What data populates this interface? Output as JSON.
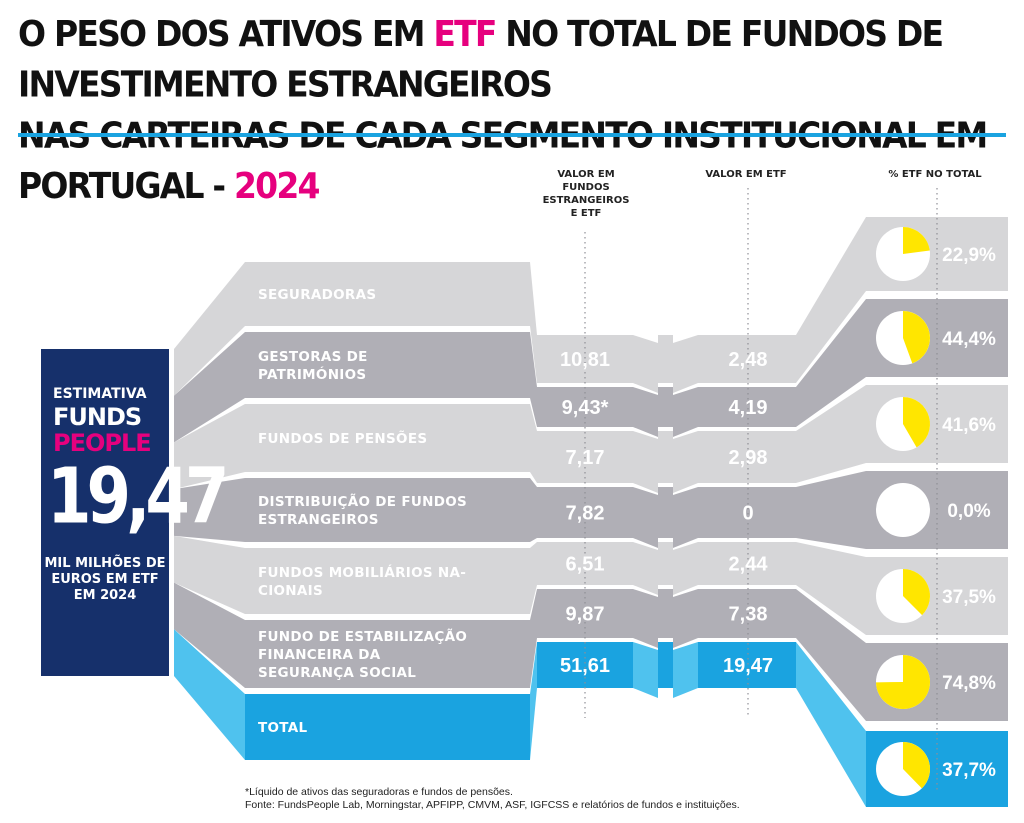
{
  "title": {
    "line1_a": "O PESO DOS ATIVOS EM ",
    "line1_hl": "ETF",
    "line1_b": " NO TOTAL DE FUNDOS DE INVESTIMENTO ESTRANGEIROS",
    "line2_a": "NAS CARTEIRAS DE CADA SEGMENTO INSTITUCIONAL EM PORTUGAL - ",
    "line2_hl": "2024"
  },
  "headers": {
    "col1": "VALOR EM FUNDOS ESTRANGEIROS E ETF",
    "col2": "VALOR EM ETF",
    "col3": "% ETF NO TOTAL"
  },
  "badge": {
    "estimativa": "ESTIMATIVA",
    "brand1": "FUNDS",
    "brand2": "PEOPLE",
    "value": "19,47",
    "unit": "MIL MILHÕES DE EUROS EM ETF EM 2024"
  },
  "chart_data": {
    "type": "table",
    "columns": [
      "VALOR EM FUNDOS ESTRANGEIROS E ETF",
      "VALOR EM ETF",
      "% ETF NO TOTAL"
    ],
    "rows": [
      {
        "segment": "SEGURADORAS",
        "funds_display": "10,81",
        "etf_display": "2,48",
        "pct_display": "22,9%",
        "pct": 22.9
      },
      {
        "segment": "GESTORAS DE PATRIMÓNIOS",
        "funds_display": "9,43*",
        "etf_display": "4,19",
        "pct_display": "44,4%",
        "pct": 44.4
      },
      {
        "segment": "FUNDOS DE PENSÕES",
        "funds_display": "7,17",
        "etf_display": "2,98",
        "pct_display": "41,6%",
        "pct": 41.6
      },
      {
        "segment": "DISTRIBUIÇÃO DE FUNDOS ESTRANGEIROS",
        "funds_display": "7,82",
        "etf_display": "0",
        "pct_display": "0,0%",
        "pct": 0.0
      },
      {
        "segment": "FUNDOS MOBILIÁRIOS NACIONAIS",
        "funds_display": "6,51",
        "etf_display": "2,44",
        "pct_display": "37,5%",
        "pct": 37.5
      },
      {
        "segment": "FUNDO DE ESTABILIZAÇÃO FINANCEIRA DA SEGURANÇA SOCIAL",
        "funds_display": "9,87",
        "etf_display": "7,38",
        "pct_display": "74,8%",
        "pct": 74.8
      },
      {
        "segment": "TOTAL",
        "funds_display": "51,61",
        "etf_display": "19,47",
        "pct_display": "37,7%",
        "pct": 37.7
      }
    ],
    "row_labels_display": [
      "SEGURADORAS",
      "GESTORAS DE|PATRIMÓNIOS",
      "FUNDOS DE PENSÕES",
      "DISTRIBUIÇÃO DE FUNDOS|ESTRANGEIROS",
      "FUNDOS MOBILIÁRIOS NA-|CIONAIS",
      "FUNDO DE ESTABILIZAÇÃO|FINANCEIRA DA|SEGURANÇA SOCIAL",
      "TOTAL"
    ]
  },
  "colors": {
    "light": "#d6d6d8",
    "dark": "#b0afb6",
    "total": "#1aa3e0",
    "total_light": "#4fc2ee",
    "pie_fill": "#ffe600",
    "accent": "#e6007e",
    "badge": "#16306b"
  },
  "footnote": {
    "line1": "*Líquido de ativos das seguradoras e fundos de pensões.",
    "line2": "Fonte: FundsPeople Lab, Morningstar, APFIPP, CMVM, ASF, IGFCSS e relatórios de fundos e instituições."
  }
}
